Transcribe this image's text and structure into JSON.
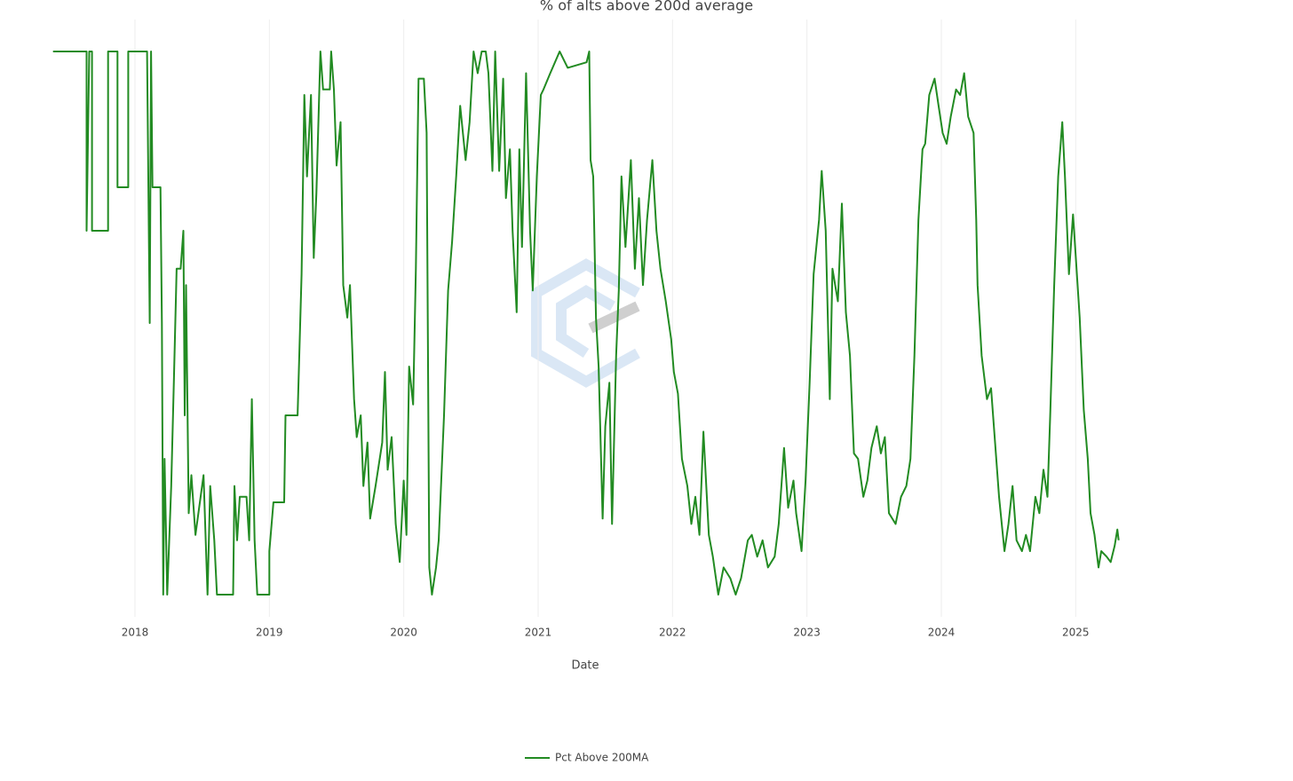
{
  "chart_data": {
    "type": "line",
    "title": "% of alts above 200d average",
    "xlabel": "Date",
    "xlim": [
      2017.26,
      2025.52
    ],
    "xticks": [
      2018,
      2019,
      2020,
      2021,
      2022,
      2023,
      2024,
      2025
    ],
    "ylim": [
      0,
      100
    ],
    "grid": true,
    "legend": "bottom",
    "x": [
      2017.39,
      2017.64,
      2017.64,
      2017.66,
      2017.68,
      2017.68,
      2017.8,
      2017.8,
      2017.87,
      2017.87,
      2017.95,
      2017.95,
      2018.09,
      2018.1,
      2018.11,
      2018.12,
      2018.13,
      2018.19,
      2018.2,
      2018.21,
      2018.22,
      2018.24,
      2018.27,
      2018.29,
      2018.31,
      2018.34,
      2018.36,
      2018.37,
      2018.38,
      2018.4,
      2018.42,
      2018.45,
      2018.51,
      2018.54,
      2018.56,
      2018.59,
      2018.61,
      2018.73,
      2018.74,
      2018.76,
      2018.78,
      2018.83,
      2018.85,
      2018.87,
      2018.89,
      2018.91,
      2019.0,
      2019.0,
      2019.03,
      2019.11,
      2019.12,
      2019.21,
      2019.24,
      2019.26,
      2019.28,
      2019.31,
      2019.33,
      2019.35,
      2019.38,
      2019.4,
      2019.45,
      2019.46,
      2019.48,
      2019.5,
      2019.53,
      2019.55,
      2019.58,
      2019.6,
      2019.63,
      2019.65,
      2019.68,
      2019.7,
      2019.73,
      2019.75,
      2019.79,
      2019.84,
      2019.86,
      2019.88,
      2019.91,
      2019.94,
      2019.97,
      2020.0,
      2020.02,
      2020.04,
      2020.07,
      2020.09,
      2020.11,
      2020.15,
      2020.17,
      2020.19,
      2020.21,
      2020.24,
      2020.26,
      2020.3,
      2020.33,
      2020.36,
      2020.39,
      2020.42,
      2020.46,
      2020.49,
      2020.52,
      2020.55,
      2020.58,
      2020.61,
      2020.63,
      2020.66,
      2020.68,
      2020.71,
      2020.74,
      2020.76,
      2020.79,
      2020.81,
      2020.84,
      2020.86,
      2020.88,
      2020.91,
      2020.94,
      2020.96,
      2020.99,
      2021.02,
      2021.04,
      2021.09,
      2021.16,
      2021.22,
      2021.36,
      2021.38,
      2021.39,
      2021.41,
      2021.43,
      2021.45,
      2021.48,
      2021.5,
      2021.53,
      2021.55,
      2021.58,
      2021.6,
      2021.62,
      2021.65,
      2021.69,
      2021.72,
      2021.75,
      2021.78,
      2021.81,
      2021.85,
      2021.88,
      2021.91,
      2021.95,
      2021.99,
      2022.01,
      2022.04,
      2022.07,
      2022.11,
      2022.14,
      2022.17,
      2022.2,
      2022.23,
      2022.27,
      2022.3,
      2022.34,
      2022.38,
      2022.43,
      2022.47,
      2022.51,
      2022.56,
      2022.59,
      2022.63,
      2022.67,
      2022.71,
      2022.76,
      2022.79,
      2022.83,
      2022.86,
      2022.9,
      2022.92,
      2022.96,
      2022.99,
      2023.02,
      2023.05,
      2023.09,
      2023.11,
      2023.14,
      2023.17,
      2023.19,
      2023.23,
      2023.26,
      2023.29,
      2023.32,
      2023.35,
      2023.38,
      2023.42,
      2023.45,
      2023.48,
      2023.52,
      2023.55,
      2023.58,
      2023.61,
      2023.66,
      2023.7,
      2023.74,
      2023.77,
      2023.8,
      2023.83,
      2023.86,
      2023.88,
      2023.91,
      2023.95,
      2023.98,
      2024.01,
      2024.04,
      2024.07,
      2024.11,
      2024.14,
      2024.17,
      2024.2,
      2024.24,
      2024.26,
      2024.27,
      2024.3,
      2024.34,
      2024.37,
      2024.4,
      2024.43,
      2024.47,
      2024.5,
      2024.53,
      2024.56,
      2024.6,
      2024.63,
      2024.66,
      2024.7,
      2024.73,
      2024.76,
      2024.79,
      2024.81,
      2024.84,
      2024.87,
      2024.9,
      2024.92,
      2024.95,
      2024.98,
      2025.03,
      2025.06,
      2025.09,
      2025.11,
      2025.14,
      2025.17,
      2025.19,
      2025.23,
      2025.26,
      2025.29,
      2025.31,
      2025.32
    ],
    "series": [
      {
        "name": "Pct Above 200MA",
        "color": "#228b22",
        "values": [
          100,
          100,
          67,
          100,
          100,
          67,
          67,
          100,
          100,
          75,
          75,
          100,
          100,
          75,
          50,
          100,
          75,
          75,
          50,
          0,
          25,
          0,
          20,
          40,
          60,
          60,
          67,
          33,
          57,
          15,
          22,
          11,
          22,
          0,
          20,
          10,
          0,
          0,
          20,
          10,
          18,
          18,
          10,
          36,
          10,
          0,
          0,
          8,
          17,
          17,
          33,
          33,
          59,
          92,
          77,
          92,
          62,
          74,
          100,
          93,
          93,
          100,
          93,
          79,
          87,
          57,
          51,
          57,
          36,
          29,
          33,
          20,
          28,
          14,
          20,
          28,
          41,
          23,
          29,
          13,
          6,
          21,
          11,
          42,
          35,
          60,
          95,
          95,
          85,
          5,
          0,
          5,
          10,
          33,
          56,
          65,
          77,
          90,
          80,
          87,
          100,
          96,
          100,
          100,
          96,
          78,
          100,
          78,
          95,
          73,
          82,
          67,
          52,
          82,
          64,
          96,
          67,
          56,
          77,
          92,
          93,
          96,
          100,
          97,
          98,
          100,
          80,
          77,
          51,
          42,
          14,
          31,
          39,
          13,
          44,
          56,
          77,
          64,
          80,
          60,
          73,
          57,
          69,
          80,
          67,
          60,
          54,
          47,
          41,
          37,
          25,
          20,
          13,
          18,
          11,
          30,
          11,
          7,
          0,
          5,
          3,
          0,
          3,
          10,
          11,
          7,
          10,
          5,
          7,
          13,
          27,
          16,
          21,
          15,
          8,
          21,
          39,
          59,
          69,
          78,
          67,
          36,
          60,
          54,
          72,
          52,
          44,
          26,
          25,
          18,
          21,
          27,
          31,
          26,
          29,
          15,
          13,
          18,
          20,
          25,
          44,
          69,
          82,
          83,
          92,
          95,
          90,
          85,
          83,
          88,
          93,
          92,
          96,
          88,
          85,
          69,
          57,
          44,
          36,
          38,
          28,
          18,
          8,
          13,
          20,
          10,
          8,
          11,
          8,
          18,
          15,
          23,
          18,
          33,
          57,
          77,
          87,
          77,
          59,
          70,
          51,
          34,
          25,
          15,
          11,
          5,
          8,
          7,
          6,
          9,
          12,
          10
        ]
      }
    ]
  }
}
